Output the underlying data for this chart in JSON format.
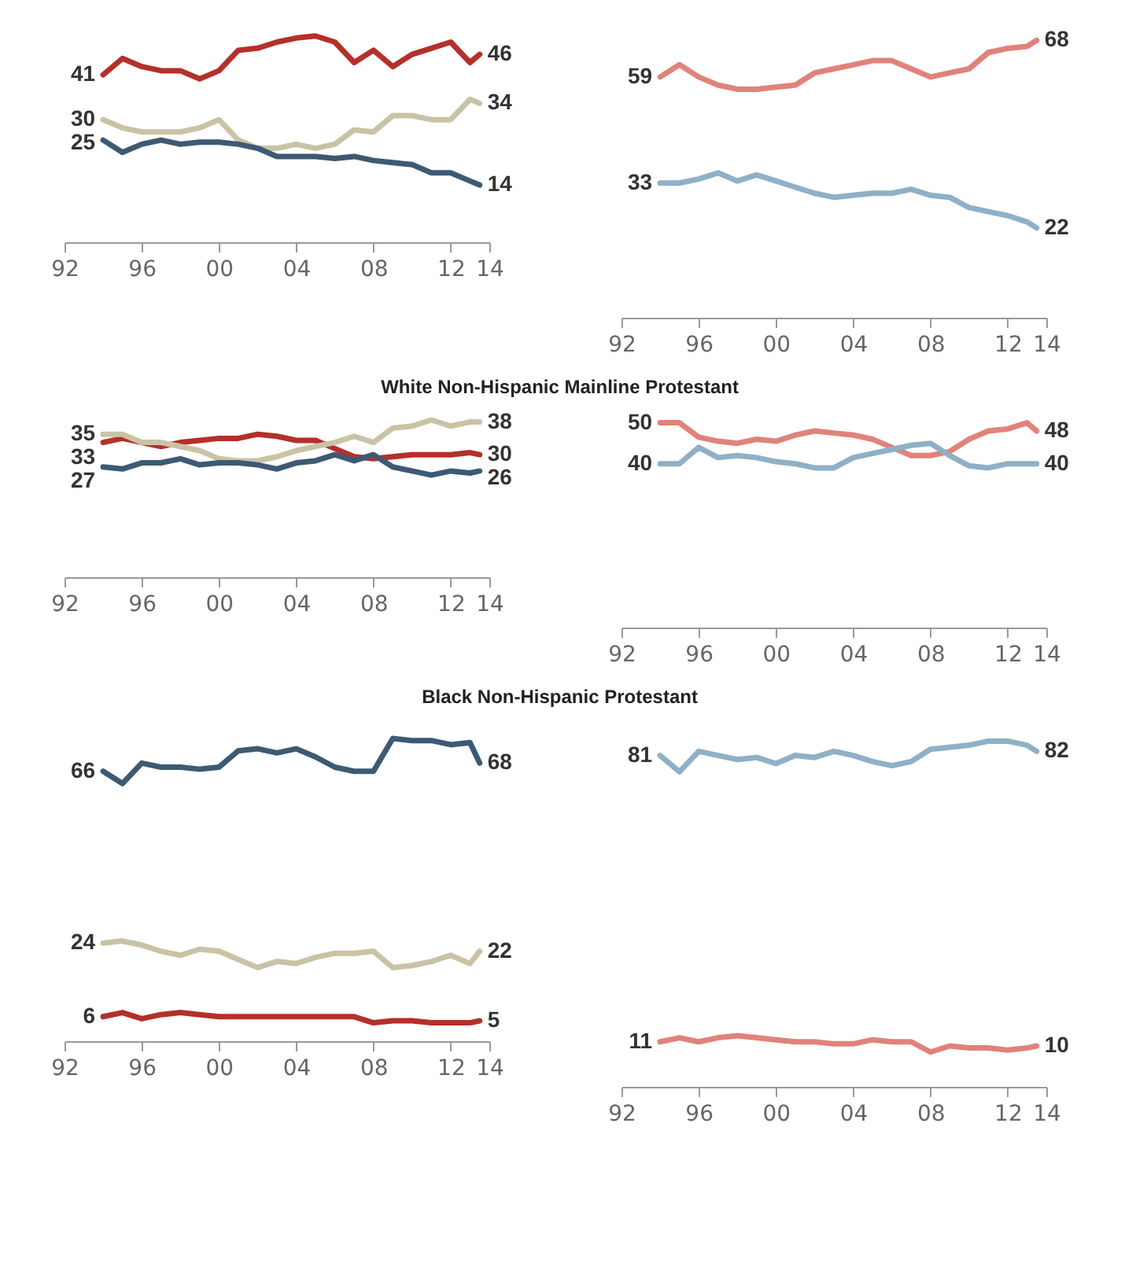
{
  "chart_data": [
    {
      "type": "line",
      "x": [
        1994,
        1995,
        1996,
        1997,
        1998,
        1999,
        2000,
        2001,
        2002,
        2003,
        2004,
        2005,
        2006,
        2007,
        2008,
        2009,
        2010,
        2011,
        2012,
        2013,
        2013.5
      ],
      "xlim": [
        1992,
        2014
      ],
      "xticks": [
        {
          "value": 1992,
          "label": "92"
        },
        {
          "value": 1996,
          "label": "96"
        },
        {
          "value": 2000,
          "label": "00"
        },
        {
          "value": 2004,
          "label": "04"
        },
        {
          "value": 2008,
          "label": "08"
        },
        {
          "value": 2012,
          "label": "12"
        },
        {
          "value": 2014,
          "label": "14"
        }
      ],
      "tick_labels": "x",
      "series": [
        {
          "color": "#b5302a",
          "values": [
            41,
            45,
            43,
            42,
            42,
            40,
            42,
            47,
            47.5,
            49,
            50,
            50.5,
            49,
            44,
            47,
            43,
            46,
            47.5,
            49,
            44,
            46
          ],
          "value_labels": [
            "41",
            null,
            null,
            null,
            null,
            null,
            null,
            null,
            null,
            null,
            null,
            null,
            null,
            null,
            null,
            null,
            null,
            null,
            null,
            null,
            "46"
          ]
        },
        {
          "color": "#c9c3a6",
          "values": [
            30,
            28,
            27,
            27,
            27,
            28,
            30,
            25,
            23,
            23,
            24,
            23,
            24,
            27.5,
            27,
            31,
            31,
            30,
            30,
            35,
            34
          ],
          "value_labels": [
            "30",
            null,
            null,
            null,
            null,
            null,
            null,
            null,
            null,
            null,
            null,
            null,
            null,
            null,
            null,
            null,
            null,
            null,
            null,
            null,
            "34"
          ]
        },
        {
          "color": "#3d5a73",
          "values": [
            25,
            22,
            24,
            25,
            24,
            24.5,
            24.5,
            24,
            23,
            21,
            21,
            21,
            20.5,
            21,
            20,
            19.5,
            19,
            17,
            17,
            15,
            14
          ],
          "value_labels": [
            "25",
            null,
            null,
            null,
            null,
            null,
            null,
            null,
            null,
            null,
            null,
            null,
            null,
            null,
            null,
            null,
            null,
            null,
            null,
            null,
            "14"
          ]
        }
      ]
    },
    {
      "type": "line",
      "x": [
        1994,
        1995,
        1996,
        1997,
        1998,
        1999,
        2000,
        2001,
        2002,
        2003,
        2004,
        2005,
        2006,
        2007,
        2008,
        2009,
        2010,
        2011,
        2012,
        2013,
        2013.5
      ],
      "xlim": [
        1992,
        2014
      ],
      "xticks": [
        {
          "value": 1992,
          "label": "92"
        },
        {
          "value": 1996,
          "label": "96"
        },
        {
          "value": 2000,
          "label": "00"
        },
        {
          "value": 2004,
          "label": "04"
        },
        {
          "value": 2008,
          "label": "08"
        },
        {
          "value": 2012,
          "label": "12"
        },
        {
          "value": 2014,
          "label": "14"
        }
      ],
      "tick_labels": "x",
      "series": [
        {
          "color": "#e0837a",
          "values": [
            59,
            62,
            59,
            57,
            56,
            56,
            56.5,
            57,
            60,
            61,
            62,
            63,
            63,
            61,
            59,
            60,
            61,
            65,
            66,
            66.5,
            68
          ],
          "value_labels": [
            "59",
            null,
            null,
            null,
            null,
            null,
            null,
            null,
            null,
            null,
            null,
            null,
            null,
            null,
            null,
            null,
            null,
            null,
            null,
            null,
            "68"
          ]
        },
        {
          "color": "#8fb0c6",
          "values": [
            33,
            33,
            34,
            35.5,
            33.5,
            35,
            33.5,
            32,
            30.5,
            29.5,
            30,
            30.5,
            30.5,
            31.5,
            30,
            29.5,
            27,
            26,
            25,
            23.5,
            22
          ],
          "value_labels": [
            "33",
            null,
            null,
            null,
            null,
            null,
            null,
            null,
            null,
            null,
            null,
            null,
            null,
            null,
            null,
            null,
            null,
            null,
            null,
            null,
            "22"
          ]
        }
      ]
    },
    {
      "type": "line",
      "title": "White Non-Hispanic Mainline Protestant",
      "x": [
        1994,
        1995,
        1996,
        1997,
        1998,
        1999,
        2000,
        2001,
        2002,
        2003,
        2004,
        2005,
        2006,
        2007,
        2008,
        2009,
        2010,
        2011,
        2012,
        2013,
        2013.5
      ],
      "xlim": [
        1992,
        2014
      ],
      "xticks": [
        {
          "value": 1992,
          "label": "92"
        },
        {
          "value": 1996,
          "label": "96"
        },
        {
          "value": 2000,
          "label": "00"
        },
        {
          "value": 2004,
          "label": "04"
        },
        {
          "value": 2008,
          "label": "08"
        },
        {
          "value": 2012,
          "label": "12"
        },
        {
          "value": 2014,
          "label": "14"
        }
      ],
      "tick_labels": "x",
      "series": [
        {
          "color": "#b5302a",
          "values": [
            33,
            34,
            33,
            32,
            33,
            33.5,
            34,
            34,
            35,
            34.5,
            33.5,
            33.5,
            31.5,
            29.5,
            29,
            29.5,
            30,
            30,
            30,
            30.5,
            30
          ],
          "value_labels": [
            "33",
            null,
            null,
            null,
            null,
            null,
            null,
            null,
            null,
            null,
            null,
            null,
            null,
            null,
            null,
            null,
            null,
            null,
            null,
            null,
            "30"
          ]
        },
        {
          "color": "#c9c3a6",
          "values": [
            35,
            35,
            33,
            33,
            32,
            31,
            29,
            28.5,
            28.5,
            29.5,
            31,
            32,
            33,
            34.5,
            33,
            36.5,
            37,
            38.5,
            37,
            38,
            38
          ],
          "value_labels": [
            "35",
            null,
            null,
            null,
            null,
            null,
            null,
            null,
            null,
            null,
            null,
            null,
            null,
            null,
            null,
            null,
            null,
            null,
            null,
            null,
            "38"
          ]
        },
        {
          "color": "#3d5a73",
          "values": [
            27,
            26.5,
            28,
            28,
            29,
            27.5,
            28,
            28,
            27.5,
            26.5,
            28,
            28.5,
            30,
            28.5,
            30,
            27,
            26,
            25,
            26,
            25.5,
            26
          ],
          "value_labels": [
            "27",
            null,
            null,
            null,
            null,
            null,
            null,
            null,
            null,
            null,
            null,
            null,
            null,
            null,
            null,
            null,
            null,
            null,
            null,
            null,
            "26"
          ]
        }
      ]
    },
    {
      "type": "line",
      "x": [
        1994,
        1995,
        1996,
        1997,
        1998,
        1999,
        2000,
        2001,
        2002,
        2003,
        2004,
        2005,
        2006,
        2007,
        2008,
        2009,
        2010,
        2011,
        2012,
        2013,
        2013.5
      ],
      "xlim": [
        1992,
        2014
      ],
      "xticks": [
        {
          "value": 1992,
          "label": "92"
        },
        {
          "value": 1996,
          "label": "96"
        },
        {
          "value": 2000,
          "label": "00"
        },
        {
          "value": 2004,
          "label": "04"
        },
        {
          "value": 2008,
          "label": "08"
        },
        {
          "value": 2012,
          "label": "12"
        },
        {
          "value": 2014,
          "label": "14"
        }
      ],
      "tick_labels": "x",
      "series": [
        {
          "color": "#e0837a",
          "values": [
            50,
            50,
            46.5,
            45.5,
            45,
            46,
            45.5,
            47,
            48,
            47.5,
            47,
            46,
            44,
            42,
            42,
            43,
            46,
            48,
            48.5,
            50,
            48
          ],
          "value_labels": [
            "50",
            null,
            null,
            null,
            null,
            null,
            null,
            null,
            null,
            null,
            null,
            null,
            null,
            null,
            null,
            null,
            null,
            null,
            null,
            null,
            "48"
          ]
        },
        {
          "color": "#8fb0c6",
          "values": [
            40,
            40,
            44,
            41.5,
            42,
            41.5,
            40.5,
            40,
            39,
            39,
            41.5,
            42.5,
            43.5,
            44.5,
            45,
            42,
            39.5,
            39,
            40,
            40,
            40
          ],
          "value_labels": [
            "40",
            null,
            null,
            null,
            null,
            null,
            null,
            null,
            null,
            null,
            null,
            null,
            null,
            null,
            null,
            null,
            null,
            null,
            null,
            null,
            "40"
          ]
        }
      ]
    },
    {
      "type": "line",
      "title": "Black Non-Hispanic Protestant",
      "x": [
        1994,
        1995,
        1996,
        1997,
        1998,
        1999,
        2000,
        2001,
        2002,
        2003,
        2004,
        2005,
        2006,
        2007,
        2008,
        2009,
        2010,
        2011,
        2012,
        2013,
        2013.5
      ],
      "xlim": [
        1992,
        2014
      ],
      "xticks": [
        {
          "value": 1992,
          "label": "92"
        },
        {
          "value": 1996,
          "label": "96"
        },
        {
          "value": 2000,
          "label": "00"
        },
        {
          "value": 2004,
          "label": "04"
        },
        {
          "value": 2008,
          "label": "08"
        },
        {
          "value": 2012,
          "label": "12"
        },
        {
          "value": 2014,
          "label": "14"
        }
      ],
      "tick_labels": "x",
      "series": [
        {
          "color": "#3d5a73",
          "values": [
            66,
            63,
            68,
            67,
            67,
            66.5,
            67,
            71,
            71.5,
            70.5,
            71.5,
            69.5,
            67,
            66,
            66,
            74,
            73.5,
            73.5,
            72.5,
            73,
            68
          ],
          "value_labels": [
            "66",
            null,
            null,
            null,
            null,
            null,
            null,
            null,
            null,
            null,
            null,
            null,
            null,
            null,
            null,
            null,
            null,
            null,
            null,
            null,
            "68"
          ]
        },
        {
          "color": "#c9c3a6",
          "values": [
            24,
            24.5,
            23.5,
            22,
            21,
            22.5,
            22,
            20,
            18,
            19.5,
            19,
            20.5,
            21.5,
            21.5,
            22,
            18,
            18.5,
            19.5,
            21,
            19,
            22
          ],
          "value_labels": [
            "24",
            null,
            null,
            null,
            null,
            null,
            null,
            null,
            null,
            null,
            null,
            null,
            null,
            null,
            null,
            null,
            null,
            null,
            null,
            null,
            "22"
          ]
        },
        {
          "color": "#b5302a",
          "values": [
            6,
            7,
            5.5,
            6.5,
            7,
            6.5,
            6,
            6,
            6,
            6,
            6,
            6,
            6,
            6,
            4.5,
            5,
            5,
            4.5,
            4.5,
            4.5,
            5
          ],
          "value_labels": [
            "6",
            null,
            null,
            null,
            null,
            null,
            null,
            null,
            null,
            null,
            null,
            null,
            null,
            null,
            null,
            null,
            null,
            null,
            null,
            null,
            "5"
          ]
        }
      ]
    },
    {
      "type": "line",
      "x": [
        1994,
        1995,
        1996,
        1997,
        1998,
        1999,
        2000,
        2001,
        2002,
        2003,
        2004,
        2005,
        2006,
        2007,
        2008,
        2009,
        2010,
        2011,
        2012,
        2013,
        2013.5
      ],
      "xlim": [
        1992,
        2014
      ],
      "xticks": [
        {
          "value": 1992,
          "label": "92"
        },
        {
          "value": 1996,
          "label": "96"
        },
        {
          "value": 2000,
          "label": "00"
        },
        {
          "value": 2004,
          "label": "04"
        },
        {
          "value": 2008,
          "label": "08"
        },
        {
          "value": 2012,
          "label": "12"
        },
        {
          "value": 2014,
          "label": "14"
        }
      ],
      "tick_labels": "x",
      "series": [
        {
          "color": "#8fb0c6",
          "values": [
            81,
            77,
            82,
            81,
            80,
            80.5,
            79,
            81,
            80.5,
            82,
            81,
            79.5,
            78.5,
            79.5,
            82.5,
            83,
            83.5,
            84.5,
            84.5,
            83.5,
            82
          ],
          "value_labels": [
            "81",
            null,
            null,
            null,
            null,
            null,
            null,
            null,
            null,
            null,
            null,
            null,
            null,
            null,
            null,
            null,
            null,
            null,
            null,
            null,
            "82"
          ]
        },
        {
          "color": "#e0837a",
          "values": [
            11,
            12,
            11,
            12,
            12.5,
            12,
            11.5,
            11,
            11,
            10.5,
            10.5,
            11.5,
            11,
            11,
            8.5,
            10,
            9.5,
            9.5,
            9,
            9.5,
            10
          ],
          "value_labels": [
            "11",
            null,
            null,
            null,
            null,
            null,
            null,
            null,
            null,
            null,
            null,
            null,
            null,
            null,
            null,
            null,
            null,
            null,
            null,
            null,
            "10"
          ]
        }
      ]
    }
  ]
}
